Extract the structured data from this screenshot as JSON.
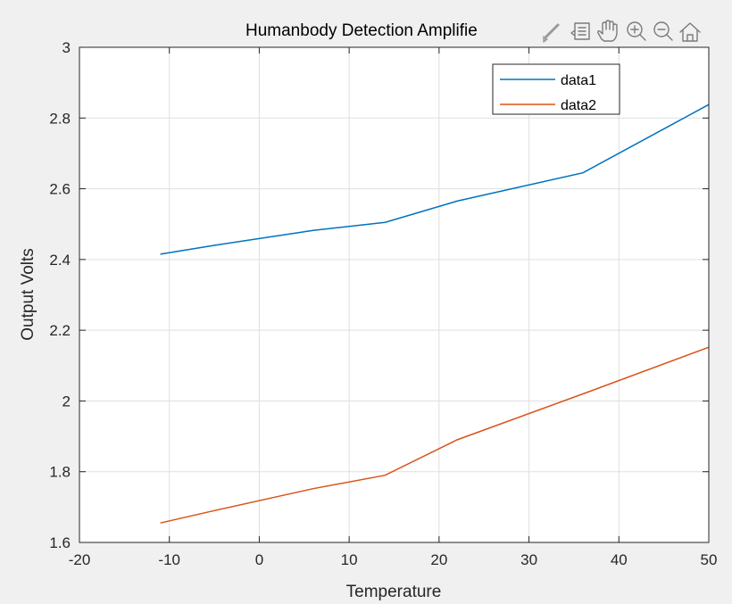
{
  "chart_data": {
    "type": "line",
    "title": "Humanbody Detection Amplifie",
    "xlabel": "Temperature",
    "ylabel": "Output Volts",
    "xlim": [
      -20,
      50
    ],
    "ylim": [
      1.6,
      3
    ],
    "xticks": [
      -20,
      -10,
      0,
      10,
      20,
      30,
      40,
      50
    ],
    "yticks": [
      1.6,
      1.8,
      2,
      2.2,
      2.4,
      2.6,
      2.8,
      3
    ],
    "xtick_labels": [
      "-20",
      "-10",
      "0",
      "10",
      "20",
      "30",
      "40",
      "50"
    ],
    "ytick_labels": [
      "1.6",
      "1.8",
      "2",
      "2.2",
      "2.4",
      "2.6",
      "2.8",
      "3"
    ],
    "grid": true,
    "legend_position": "top-right",
    "series": [
      {
        "name": "data1",
        "color": "#0072bd",
        "x": [
          -11,
          -5,
          6,
          14,
          22,
          36,
          50
        ],
        "y": [
          2.415,
          2.44,
          2.482,
          2.505,
          2.565,
          2.645,
          2.838
        ]
      },
      {
        "name": "data2",
        "color": "#d95319",
        "x": [
          -11,
          -5,
          6,
          14,
          22,
          36,
          50
        ],
        "y": [
          1.655,
          1.69,
          1.752,
          1.79,
          1.89,
          2.02,
          2.152
        ]
      }
    ]
  },
  "toolbar": {
    "icons": [
      "brush-icon",
      "datatip-icon",
      "pan-hand-icon",
      "zoom-in-icon",
      "zoom-out-icon",
      "home-icon"
    ]
  }
}
